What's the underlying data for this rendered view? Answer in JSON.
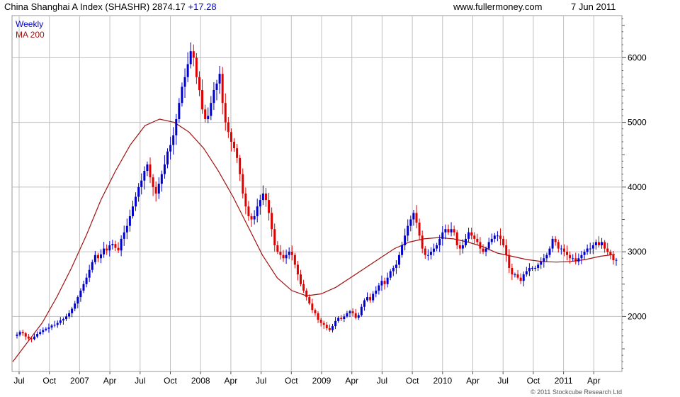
{
  "header": {
    "title": "China Shanghai A Index (SHASHR)",
    "last": "2874.17",
    "change": "+17.28",
    "site": "www.fullermoney.com",
    "date": "7 Jun 2011"
  },
  "legend": {
    "series1": "Weekly",
    "series2": "MA 200"
  },
  "copyright": "© 2011 Stockcube Research Ltd",
  "colors": {
    "up": "#0000cc",
    "down": "#e00000",
    "ma": "#a01010",
    "change": "#0000cc",
    "grid": "#c0c0c0"
  },
  "chart_data": {
    "type": "candlestick",
    "title": "China Shanghai A Index (SHASHR)",
    "frequency": "Weekly",
    "ylim": [
      1150,
      6650
    ],
    "yticks": [
      "2000",
      "3000",
      "4000",
      "5000",
      "6000"
    ],
    "xticks": [
      "Jul",
      "Oct",
      "2007",
      "Apr",
      "Jul",
      "Oct",
      "2008",
      "Apr",
      "Jul",
      "Oct",
      "2009",
      "Apr",
      "Jul",
      "Oct",
      "2010",
      "Apr",
      "Jul",
      "Oct",
      "2011",
      "Apr"
    ],
    "x_start": "2006-07-07",
    "close": [
      1720,
      1760,
      1740,
      1690,
      1660,
      1650,
      1690,
      1730,
      1760,
      1790,
      1810,
      1830,
      1860,
      1870,
      1900,
      1940,
      1960,
      2000,
      2050,
      2120,
      2200,
      2300,
      2400,
      2500,
      2600,
      2720,
      2840,
      2950,
      2900,
      2960,
      3050,
      3020,
      3100,
      3120,
      3060,
      3020,
      3200,
      3300,
      3400,
      3550,
      3700,
      3850,
      4000,
      4100,
      4250,
      4350,
      4150,
      4000,
      3900,
      4050,
      4200,
      4350,
      4550,
      4650,
      4800,
      5050,
      5300,
      5550,
      5700,
      5900,
      6100,
      6000,
      5700,
      5500,
      5200,
      5050,
      5100,
      5300,
      5500,
      5600,
      5750,
      5300,
      5000,
      4850,
      4700,
      4600,
      4450,
      4200,
      3900,
      3700,
      3550,
      3500,
      3550,
      3700,
      3800,
      3900,
      3800,
      3600,
      3350,
      3100,
      3000,
      2950,
      2900,
      2950,
      3000,
      2950,
      2800,
      2650,
      2500,
      2400,
      2300,
      2200,
      2100,
      2050,
      1950,
      1900,
      1870,
      1820,
      1790,
      1850,
      1930,
      1980,
      1960,
      2000,
      2050,
      2080,
      2050,
      1980,
      2020,
      2150,
      2250,
      2300,
      2250,
      2350,
      2400,
      2480,
      2550,
      2500,
      2600,
      2700,
      2750,
      2800,
      2950,
      3100,
      3250,
      3400,
      3500,
      3600,
      3450,
      3250,
      3050,
      2950,
      2950,
      3000,
      3050,
      3100,
      3200,
      3300,
      3350,
      3300,
      3350,
      3300,
      3100,
      3050,
      3100,
      3200,
      3300,
      3250,
      3200,
      3150,
      3050,
      3000,
      3050,
      3150,
      3200,
      3250,
      3250,
      3200,
      3100,
      2950,
      2750,
      2650,
      2650,
      2600,
      2550,
      2650,
      2700,
      2750,
      2750,
      2750,
      2800,
      2850,
      2900,
      2950,
      3050,
      3200,
      3150,
      3050,
      3050,
      3000,
      2950,
      2900,
      2900,
      2850,
      2900,
      2950,
      3000,
      3050,
      3050,
      3100,
      3150,
      3100,
      3150,
      3050,
      3000,
      2950,
      2870,
      2874
    ],
    "ma200": [
      1300,
      1600,
      1900,
      2300,
      2750,
      3250,
      3800,
      4250,
      4650,
      4950,
      5050,
      5000,
      4850,
      4600,
      4250,
      3850,
      3400,
      2950,
      2600,
      2400,
      2320,
      2350,
      2450,
      2600,
      2750,
      2900,
      3050,
      3150,
      3200,
      3220,
      3200,
      3150,
      3080,
      2980,
      2930,
      2880,
      2850,
      2840,
      2850,
      2880,
      2930,
      2960
    ]
  }
}
